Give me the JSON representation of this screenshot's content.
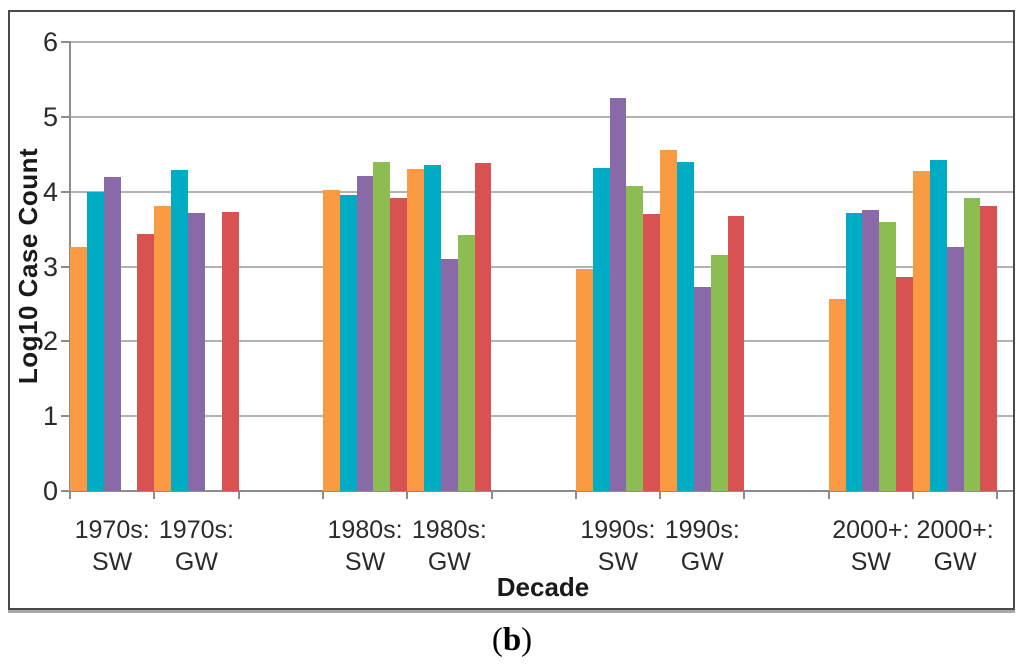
{
  "figure": {
    "caption_open": "(",
    "caption_letter": "b",
    "caption_close": ")"
  },
  "chart_data": {
    "type": "bar",
    "title": "",
    "xlabel": "Decade",
    "ylabel": "Log10 Case Count",
    "ylim": [
      0,
      6
    ],
    "yticks": [
      0,
      1,
      2,
      3,
      4,
      5,
      6
    ],
    "grid": true,
    "legend_position": "none",
    "categories": [
      "1970s: SW",
      "1970s: GW",
      "1980s: SW",
      "1980s: GW",
      "1990s: SW",
      "1990s: GW",
      "2000+: SW",
      "2000+: GW"
    ],
    "category_label_lines": [
      [
        "1970s:",
        "SW"
      ],
      [
        "1970s:",
        "GW"
      ],
      [
        "1980s:",
        "SW"
      ],
      [
        "1980s:",
        "GW"
      ],
      [
        "1990s:",
        "SW"
      ],
      [
        "1990s:",
        "GW"
      ],
      [
        "2000+:",
        "SW"
      ],
      [
        "2000+:",
        "GW"
      ]
    ],
    "series": [
      {
        "name": "series-orange",
        "color": "#FA9A43",
        "values": [
          3.26,
          3.81,
          4.02,
          4.3,
          2.97,
          4.56,
          2.56,
          4.27
        ]
      },
      {
        "name": "series-teal",
        "color": "#00ACC4",
        "values": [
          4.0,
          4.29,
          3.96,
          4.36,
          4.32,
          4.4,
          3.72,
          4.43
        ]
      },
      {
        "name": "series-purple",
        "color": "#8969A7",
        "values": [
          4.19,
          3.71,
          4.21,
          3.1,
          5.25,
          2.73,
          3.76,
          3.26
        ]
      },
      {
        "name": "series-green",
        "color": "#8DBD52",
        "values": [
          null,
          null,
          4.4,
          3.42,
          4.07,
          3.15,
          3.6,
          3.91
        ]
      },
      {
        "name": "series-red",
        "color": "#D95252",
        "values": [
          3.44,
          3.73,
          3.92,
          4.38,
          3.7,
          3.68,
          2.86,
          3.81
        ]
      }
    ],
    "colors": {
      "gridline": "#b3b3b3",
      "axis": "#8c8c8c",
      "tick_text": "#2b2b2b",
      "frame_border": "#4a4a4a"
    }
  }
}
